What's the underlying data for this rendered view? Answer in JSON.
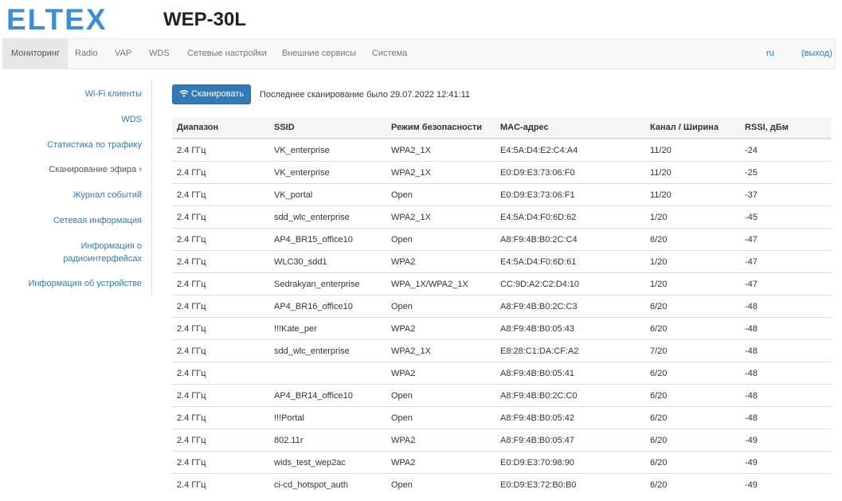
{
  "header": {
    "logo": "ELTEX",
    "title": "WEP-30L"
  },
  "nav": {
    "items": [
      "Мониторинг",
      "Radio",
      "VAP",
      "WDS",
      "Сетевые настройки",
      "Внешние сервисы",
      "Система"
    ],
    "language": "ru",
    "logout": "(выход)"
  },
  "sidebar": {
    "items": [
      "Wi-Fi клиенты",
      "WDS",
      "Статистика по трафику",
      "Сканирование эфира",
      "Журнал событий",
      "Сетевая информация",
      "Информация о радиоинтерфейсах",
      "Информация об устройстве"
    ]
  },
  "scan": {
    "button": "Сканировать",
    "last_scan": "Последнее сканирование было 29.07.2022 12:41:11"
  },
  "table": {
    "headers": [
      "Диапазон",
      "SSID",
      "Режим безопасности",
      "MAC-адрес",
      "Канал / Ширина",
      "RSSI, дБм"
    ],
    "rows": [
      [
        "2.4 ГГц",
        "VK_enterprise",
        "WPA2_1X",
        "E4:5A:D4:E2:C4:A4",
        "11/20",
        "-24"
      ],
      [
        "2.4 ГГц",
        "VK_enterprise",
        "WPA2_1X",
        "E0:D9:E3:73:06:F0",
        "11/20",
        "-25"
      ],
      [
        "2.4 ГГц",
        "VK_portal",
        "Open",
        "E0:D9:E3:73:06:F1",
        "11/20",
        "-37"
      ],
      [
        "2.4 ГГц",
        "sdd_wlc_enterprise",
        "WPA2_1X",
        "E4:5A:D4:F0:6D:62",
        "1/20",
        "-45"
      ],
      [
        "2.4 ГГц",
        "AP4_BR15_office10",
        "Open",
        "A8:F9:4B:B0:2C:C4",
        "6/20",
        "-47"
      ],
      [
        "2.4 ГГц",
        "WLC30_sdd1",
        "WPA2",
        "E4:5A:D4:F0:6D:61",
        "1/20",
        "-47"
      ],
      [
        "2.4 ГГц",
        "Sedrakyan_enterprise",
        "WPA_1X/WPA2_1X",
        "CC:9D:A2:C2:D4:10",
        "1/20",
        "-47"
      ],
      [
        "2.4 ГГц",
        "AP4_BR16_office10",
        "Open",
        "A8:F9:4B:B0:2C:C3",
        "6/20",
        "-48"
      ],
      [
        "2.4 ГГц",
        "!!!Kate_per",
        "WPA2",
        "A8:F9:4B:B0:05:43",
        "6/20",
        "-48"
      ],
      [
        "2.4 ГГц",
        "sdd_wlc_enterprise",
        "WPA2_1X",
        "E8:28:C1:DA:CF:A2",
        "7/20",
        "-48"
      ],
      [
        "2.4 ГГц",
        null,
        "WPA2",
        "A8:F9:4B:B0:05:41",
        "6/20",
        "-48"
      ],
      [
        "2.4 ГГц",
        "AP4_BR14_office10",
        "Open",
        "A8:F9:4B:B0:2C:C0",
        "6/20",
        "-48"
      ],
      [
        "2.4 ГГц",
        "!!!Portal",
        "Open",
        "A8:F9:4B:B0:05:42",
        "6/20",
        "-48"
      ],
      [
        "2.4 ГГц",
        "802.11r",
        "WPA2",
        "A8:F9:4B:B0:05:47",
        "6/20",
        "-49"
      ],
      [
        "2.4 ГГц",
        "wids_test_wep2ac",
        "WPA2",
        "E0:D9:E3:70:98:90",
        "6/20",
        "-49"
      ],
      [
        "2.4 ГГц",
        "ci-cd_hotspot_auth",
        "Open",
        "E0:D9:E3:72:B0:B0",
        "6/20",
        "-49"
      ]
    ]
  }
}
